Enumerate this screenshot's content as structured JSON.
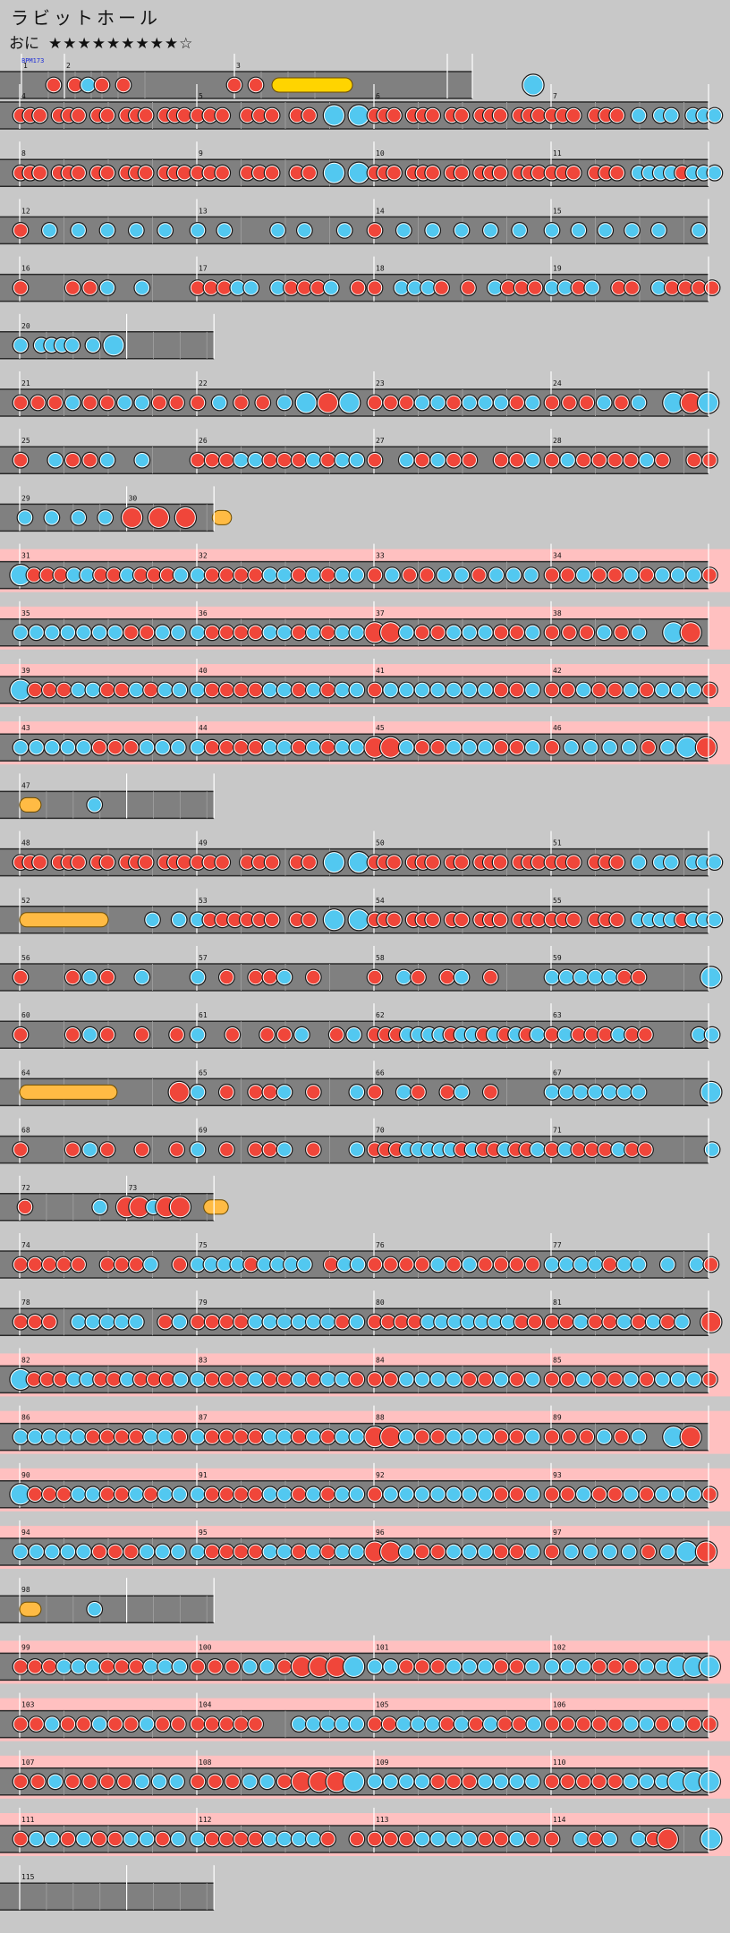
{
  "song": {
    "title": "ラビットホール",
    "difficulty_label": "おに",
    "difficulty_stars": "★★★★★★★★★☆",
    "bpm_label": "BPM173"
  },
  "colors": {
    "background": "#c8c8c8",
    "lane": "#808080",
    "lane_border": "#2a2a2a",
    "don": "#f0463a",
    "ka": "#52c8f0",
    "roll": "#ffd400",
    "balloon": "#ffbb44",
    "gogo": "#ffc0c0"
  },
  "note_types": {
    "d": "don",
    "k": "ka",
    "D": "big-don",
    "K": "big-ka"
  },
  "chart": {
    "measure_numbers": [
      "1",
      "2",
      "3",
      "4",
      "5",
      "6",
      "7",
      "8",
      "9",
      "10",
      "11",
      "12",
      "13",
      "14",
      "15",
      "16",
      "17",
      "18",
      "19",
      "20",
      "21",
      "22",
      "23",
      "24",
      "25",
      "26",
      "27",
      "28",
      "29",
      "30",
      "31",
      "32",
      "33",
      "34",
      "35",
      "36",
      "37",
      "38",
      "39",
      "40",
      "41",
      "42",
      "43",
      "44",
      "45",
      "46",
      "47",
      "48",
      "49",
      "50",
      "51",
      "52",
      "53",
      "54",
      "55",
      "56",
      "57",
      "58",
      "59",
      "60",
      "61",
      "62",
      "63",
      "64",
      "65",
      "66",
      "67",
      "68",
      "69",
      "70",
      "71",
      "72",
      "73",
      "74",
      "75",
      "76",
      "77",
      "78",
      "79",
      "80",
      "81",
      "82",
      "83",
      "84",
      "85",
      "86",
      "87",
      "88",
      "89",
      "90",
      "91",
      "92",
      "93",
      "94",
      "95",
      "96",
      "97",
      "98",
      "99",
      "100",
      "101",
      "102",
      "103",
      "104",
      "105",
      "106",
      "107",
      "108",
      "109",
      "110",
      "111",
      "112",
      "113",
      "114",
      "115"
    ],
    "rows": [
      {
        "gogo": false,
        "measures": [
          {
            "n": "1",
            "notes": [
              [
                0.3,
                "d"
              ]
            ]
          },
          {
            "n": "2",
            "notes": [
              [
                0.1,
                "d"
              ],
              [
                0.22,
                "k"
              ],
              [
                0.35,
                "d"
              ],
              [
                0.55,
                "d"
              ]
            ]
          },
          {
            "n": "3",
            "notes": [
              [
                0.0,
                "d"
              ],
              [
                0.2,
                "d"
              ]
            ],
            "rolls": [
              [
                0.35,
                1.1,
                "roll"
              ]
            ]
          },
          {
            "n": "",
            "notes": [
              [
                0.8,
                "K"
              ]
            ]
          }
        ]
      },
      {
        "gogo": false,
        "measures": [
          {
            "n": "4",
            "notes": "dddodddoddodddoddd"
          },
          {
            "n": "5",
            "notes": "dddodddoddoKoK"
          },
          {
            "n": "6",
            "notes": "dddodddoddodddoddd"
          },
          {
            "n": "7",
            "notes": "dddodddokokkokkk"
          }
        ]
      },
      {
        "gogo": false,
        "measures": [
          {
            "n": "8",
            "notes": "dddodddoddodddoddd"
          },
          {
            "n": "9",
            "notes": "dddodddoddoKoK"
          },
          {
            "n": "10",
            "notes": "dddodddoddodddoddd"
          },
          {
            "n": "11",
            "notes": "dddodddokkkkdkkk"
          }
        ]
      },
      {
        "gogo": false,
        "measures": [
          {
            "n": "12",
            "notes": "dokokokokoko"
          },
          {
            "n": "13",
            "notes": "kokoookokooko"
          },
          {
            "n": "14",
            "notes": "dokokokokoko"
          },
          {
            "n": "15",
            "notes": "kokokokokooko"
          }
        ]
      },
      {
        "gogo": false,
        "measures": [
          {
            "n": "16",
            "notes": "dooddkokoo"
          },
          {
            "n": "17",
            "notes": "dddkkokdddkod"
          },
          {
            "n": "18",
            "notes": "dokkkdodokddd"
          },
          {
            "n": "19",
            "notes": "kkdkoddokdddd"
          }
        ]
      },
      {
        "gogo": false,
        "width": 0.5,
        "measures": [
          {
            "n": "20",
            "notes": "kokkkkokoK"
          },
          {
            "n": "",
            "notes": ""
          }
        ]
      },
      {
        "gogo": false,
        "measures": [
          {
            "n": "21",
            "notes": "dddkddkkdd"
          },
          {
            "n": "22",
            "notes": "dkddkKDK"
          },
          {
            "n": "23",
            "notes": "dddkkdkkkdk"
          },
          {
            "n": "24",
            "notes": "dddkdkoKDK"
          }
        ]
      },
      {
        "gogo": false,
        "measures": [
          {
            "n": "25",
            "notes": "dokddkokoo"
          },
          {
            "n": "26",
            "notes": "dddkkdddkdkk"
          },
          {
            "n": "27",
            "notes": "dokdkddoddk"
          },
          {
            "n": "28",
            "notes": "dkddddkdodd"
          }
        ]
      },
      {
        "gogo": false,
        "width": 0.5,
        "measures": [
          {
            "n": "29",
            "notes": [
              [
                0.05,
                "k"
              ],
              [
                0.3,
                "k"
              ],
              [
                0.55,
                "k"
              ],
              [
                0.8,
                "k"
              ]
            ]
          },
          {
            "n": "30",
            "notes": [
              [
                0.05,
                "D"
              ],
              [
                0.3,
                "D"
              ],
              [
                0.55,
                "D"
              ]
            ],
            "rolls": [
              [
                0.8,
                0.98,
                "balloon"
              ]
            ]
          }
        ]
      },
      {
        "gogo": true,
        "measures": [
          {
            "n": "31",
            "notes": "Kdddkkddkdddk"
          },
          {
            "n": "32",
            "notes": "kddddkkdkdkk"
          },
          {
            "n": "33",
            "notes": "dkddkkdkkk"
          },
          {
            "n": "34",
            "notes": "ddkddkdkkkd"
          }
        ]
      },
      {
        "gogo": true,
        "measures": [
          {
            "n": "35",
            "notes": "kkkkkkkddkk"
          },
          {
            "n": "36",
            "notes": "kddddkkdkdkk"
          },
          {
            "n": "37",
            "notes": "DDkddkkkddk"
          },
          {
            "n": "38",
            "notes": "dddkdkoKDo"
          }
        ]
      },
      {
        "gogo": true,
        "measures": [
          {
            "n": "39",
            "notes": "Kdddkkddkdkk"
          },
          {
            "n": "40",
            "notes": "kddddkkdkdkk"
          },
          {
            "n": "41",
            "notes": "dkkkkkkkddk"
          },
          {
            "n": "42",
            "notes": "ddkddkdkkkd"
          }
        ]
      },
      {
        "gogo": true,
        "measures": [
          {
            "n": "43",
            "notes": "kkkkkdddkkk"
          },
          {
            "n": "44",
            "notes": "kddddkkdkdkk"
          },
          {
            "n": "45",
            "notes": "DDkddkkkddk"
          },
          {
            "n": "46",
            "notes": "dkkkkdkKD"
          }
        ]
      },
      {
        "gogo": false,
        "width": 0.5,
        "measures": [
          {
            "n": "47",
            "notes": [
              [
                0.7,
                "k"
              ]
            ],
            "rolls": [
              [
                0,
                0.2,
                "roll2"
              ]
            ]
          },
          {
            "n": "",
            "notes": ""
          }
        ]
      },
      {
        "gogo": false,
        "measures": [
          {
            "n": "48",
            "notes": "dddodddoddodddoddd"
          },
          {
            "n": "49",
            "notes": "dddodddoddoKoK"
          },
          {
            "n": "50",
            "notes": "dddodddoddodddoddd"
          },
          {
            "n": "51",
            "notes": "dddodddokokkokkk"
          }
        ]
      },
      {
        "gogo": false,
        "measures": [
          {
            "n": "52",
            "notes": [
              [
                0.75,
                "k"
              ],
              [
                0.9,
                "k"
              ]
            ],
            "rolls": [
              [
                0,
                0.5,
                "balloon"
              ]
            ]
          },
          {
            "n": "53",
            "notes": "kddddddoddoKoK"
          },
          {
            "n": "54",
            "notes": "dddodddoddodddoddd"
          },
          {
            "n": "55",
            "notes": "dddodddokkkkdkkk"
          }
        ]
      },
      {
        "gogo": false,
        "measures": [
          {
            "n": "56",
            "notes": "doodkdokoo"
          },
          {
            "n": "57",
            "notes": "kododdkodooo"
          },
          {
            "n": "58",
            "notes": "dokdodkodooo"
          },
          {
            "n": "59",
            "notes": "kkkkkddooooK"
          }
        ]
      },
      {
        "gogo": false,
        "measures": [
          {
            "n": "60",
            "notes": "doodkdodod"
          },
          {
            "n": "61",
            "notes": "kododdkodk"
          },
          {
            "n": "62",
            "notes": "dddkkkkdkkdkdkdk"
          },
          {
            "n": "63",
            "notes": "dkdddkddoookk"
          }
        ]
      },
      {
        "gogo": false,
        "measures": [
          {
            "n": "64",
            "notes": [
              [
                0.9,
                "D"
              ]
            ],
            "rolls": [
              [
                0,
                0.55,
                "balloon"
              ]
            ]
          },
          {
            "n": "65",
            "notes": "kododdkodook"
          },
          {
            "n": "66",
            "notes": "dokdodkodooo"
          },
          {
            "n": "67",
            "notes": "kkkkkkkooooK"
          }
        ]
      },
      {
        "gogo": false,
        "measures": [
          {
            "n": "68",
            "notes": "doodkdodod"
          },
          {
            "n": "69",
            "notes": "kododdkodook"
          },
          {
            "n": "70",
            "notes": "dddkkkkkdkddkddk"
          },
          {
            "n": "71",
            "notes": "dkdddkddooook"
          }
        ]
      },
      {
        "gogo": false,
        "width": 0.5,
        "measures": [
          {
            "n": "72",
            "notes": [
              [
                0.05,
                "d"
              ],
              [
                0.75,
                "k"
              ]
            ]
          },
          {
            "n": "73",
            "notes": [
              [
                0.0,
                "D"
              ],
              [
                0.12,
                "D"
              ],
              [
                0.25,
                "k"
              ],
              [
                0.37,
                "D"
              ],
              [
                0.5,
                "D"
              ]
            ],
            "rolls": [
              [
                0.72,
                0.95,
                "balloon"
              ]
            ]
          }
        ]
      },
      {
        "gogo": false,
        "measures": [
          {
            "n": "74",
            "notes": "dddddodddkod"
          },
          {
            "n": "75",
            "notes": "kkkkdkkkkodkk"
          },
          {
            "n": "76",
            "notes": "ddddkdkdddd"
          },
          {
            "n": "77",
            "notes": "kkkkdkkokokd"
          }
        ]
      },
      {
        "gogo": false,
        "measures": [
          {
            "n": "78",
            "notes": "dddokkkkkodk"
          },
          {
            "n": "79",
            "notes": "ddddkkkkkkdk"
          },
          {
            "n": "80",
            "notes": "ddddkkkkkkkdd"
          },
          {
            "n": "81",
            "notes": "ddkddkdkdkoD"
          }
        ]
      },
      {
        "gogo": true,
        "measures": [
          {
            "n": "82",
            "notes": "Kdddkkddkdddk"
          },
          {
            "n": "83",
            "notes": "kdddkddkdkkd"
          },
          {
            "n": "84",
            "notes": "ddkkkkddkdk"
          },
          {
            "n": "85",
            "notes": "ddkddkdkkkd"
          }
        ]
      },
      {
        "gogo": true,
        "measures": [
          {
            "n": "86",
            "notes": "kkkkkddddkkd"
          },
          {
            "n": "87",
            "notes": "kddddkkdkdkk"
          },
          {
            "n": "88",
            "notes": "DDkddkkkddk"
          },
          {
            "n": "89",
            "notes": "dddkdkoKDo"
          }
        ]
      },
      {
        "gogo": true,
        "measures": [
          {
            "n": "90",
            "notes": "Kdddkkddkdkk"
          },
          {
            "n": "91",
            "notes": "kddddkkdkdkk"
          },
          {
            "n": "92",
            "notes": "dkkkkkkkddk"
          },
          {
            "n": "93",
            "notes": "ddkddkdkkkd"
          }
        ]
      },
      {
        "gogo": true,
        "measures": [
          {
            "n": "94",
            "notes": "kkkkkdddkkk"
          },
          {
            "n": "95",
            "notes": "kddddkkdkdkk"
          },
          {
            "n": "96",
            "notes": "DDkddkkkddk"
          },
          {
            "n": "97",
            "notes": "dkkkkdkKD"
          }
        ]
      },
      {
        "gogo": false,
        "width": 0.5,
        "measures": [
          {
            "n": "98",
            "notes": [
              [
                0.7,
                "k"
              ]
            ],
            "rolls": [
              [
                0,
                0.2,
                "roll2"
              ]
            ]
          },
          {
            "n": "",
            "notes": ""
          }
        ]
      },
      {
        "gogo": true,
        "measures": [
          {
            "n": "99",
            "notes": "dddkkkdddkkk"
          },
          {
            "n": "100",
            "notes": "dddkkdDDDK"
          },
          {
            "n": "101",
            "notes": "kkdddkkkddk"
          },
          {
            "n": "102",
            "notes": "kkkdddkkKKK"
          }
        ]
      },
      {
        "gogo": true,
        "measures": [
          {
            "n": "103",
            "notes": "ddkddkddkdd"
          },
          {
            "n": "104",
            "notes": "dddddookkkkk"
          },
          {
            "n": "105",
            "notes": "ddkkkdkdkddk"
          },
          {
            "n": "106",
            "notes": "dddddkkdkdd"
          }
        ]
      },
      {
        "gogo": true,
        "measures": [
          {
            "n": "107",
            "notes": "ddkddddkkk"
          },
          {
            "n": "108",
            "notes": "dddkkdDDDK"
          },
          {
            "n": "109",
            "notes": "kkkkdddkkkk"
          },
          {
            "n": "110",
            "notes": "dddddkkkKKK"
          }
        ]
      },
      {
        "gogo": true,
        "measures": [
          {
            "n": "111",
            "notes": "dkkdkddkkdk"
          },
          {
            "n": "112",
            "notes": "kddddkkkkdod"
          },
          {
            "n": "113",
            "notes": "dddkkkkddkd"
          },
          {
            "n": "114",
            "notes": "dokdkokdDooK"
          }
        ]
      },
      {
        "gogo": false,
        "width": 0.5,
        "measures": [
          {
            "n": "115",
            "notes": ""
          },
          {
            "n": "",
            "notes": ""
          }
        ]
      }
    ]
  }
}
